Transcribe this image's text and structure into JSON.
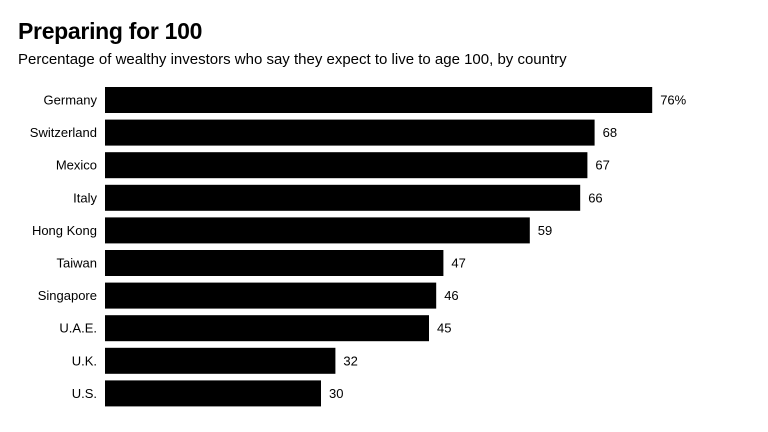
{
  "chart_data": {
    "type": "bar",
    "orientation": "horizontal",
    "title": "Preparing for 100",
    "subtitle": "Percentage of wealthy investors who say they expect to live to age 100, by country",
    "categories": [
      "Germany",
      "Switzerland",
      "Mexico",
      "Italy",
      "Hong Kong",
      "Taiwan",
      "Singapore",
      "U.A.E.",
      "U.K.",
      "U.S."
    ],
    "values": [
      76,
      68,
      67,
      66,
      59,
      47,
      46,
      45,
      32,
      30
    ],
    "value_labels": [
      "76%",
      "68",
      "67",
      "66",
      "59",
      "47",
      "46",
      "45",
      "32",
      "30"
    ],
    "xlim": [
      0,
      100
    ],
    "grid": false,
    "bar_color": "#000000"
  }
}
